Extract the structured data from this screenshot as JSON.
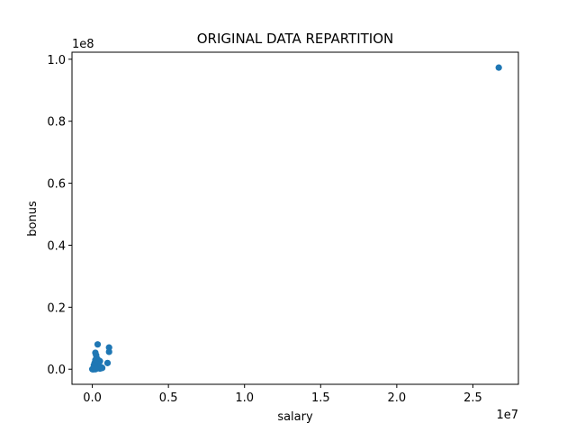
{
  "chart_data": {
    "type": "scatter",
    "title": "ORIGINAL DATA REPARTITION",
    "xlabel": "salary",
    "ylabel": "bonus",
    "x_offset_label": "1e7",
    "y_offset_label": "1e8",
    "xlim": [
      -1335000,
      27990000
    ],
    "ylim": [
      -4870000,
      102270000
    ],
    "xticks": [
      0,
      5000000,
      10000000,
      15000000,
      20000000,
      25000000
    ],
    "xtick_labels": [
      "0.0",
      "0.5",
      "1.0",
      "1.5",
      "2.0",
      "2.5"
    ],
    "yticks": [
      0,
      20000000,
      40000000,
      60000000,
      80000000,
      100000000
    ],
    "ytick_labels": [
      "0.0",
      "0.2",
      "0.4",
      "0.6",
      "0.8",
      "1.0"
    ],
    "grid": false,
    "marker_color": "#1f77b4",
    "series": [
      {
        "points": [
          [
            26700000,
            97300000
          ],
          [
            350000,
            8000000
          ],
          [
            1100000,
            7000000
          ],
          [
            1100000,
            5600000
          ],
          [
            200000,
            5300000
          ],
          [
            250000,
            4500000
          ],
          [
            300000,
            3500000
          ],
          [
            200000,
            3000000
          ],
          [
            400000,
            2900000
          ],
          [
            500000,
            2600000
          ],
          [
            300000,
            2500000
          ],
          [
            1000000,
            2000000
          ],
          [
            150000,
            2000000
          ],
          [
            250000,
            1800000
          ],
          [
            350000,
            1500000
          ],
          [
            100000,
            1300000
          ],
          [
            200000,
            1200000
          ],
          [
            450000,
            1000000
          ],
          [
            300000,
            900000
          ],
          [
            150000,
            800000
          ],
          [
            600000,
            600000
          ],
          [
            250000,
            600000
          ],
          [
            400000,
            500000
          ],
          [
            650000,
            400000
          ],
          [
            100000,
            400000
          ],
          [
            200000,
            300000
          ],
          [
            300000,
            300000
          ],
          [
            500000,
            200000
          ],
          [
            0,
            0
          ],
          [
            50000,
            0
          ],
          [
            100000,
            0
          ],
          [
            150000,
            100000
          ],
          [
            200000,
            0
          ],
          [
            250000,
            100000
          ],
          [
            80000,
            200000
          ],
          [
            180000,
            150000
          ],
          [
            30000,
            50000
          ]
        ]
      }
    ]
  }
}
